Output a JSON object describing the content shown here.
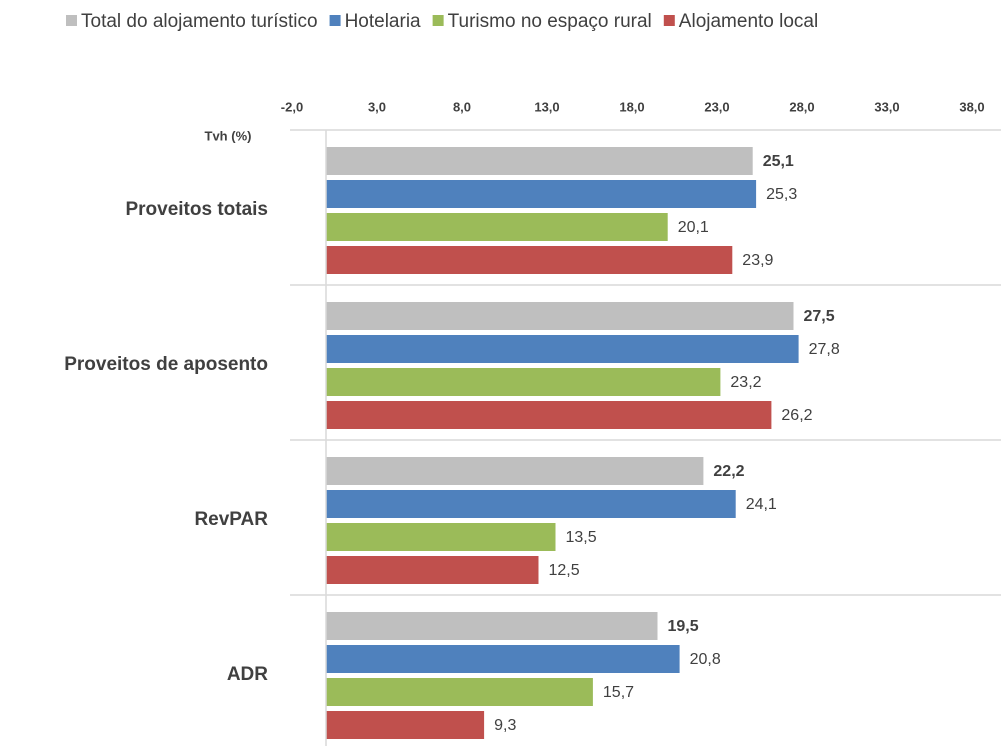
{
  "chart_data": {
    "type": "bar",
    "orientation": "horizontal",
    "x_axis_label": "Tvh (%)",
    "categories": [
      "Proveitos totais",
      "Proveitos de aposento",
      "RevPAR",
      "ADR"
    ],
    "series": [
      {
        "name": "Total do alojamento turístico",
        "color": "#bfbfbf",
        "values": [
          25.1,
          27.5,
          22.2,
          19.5
        ],
        "value_labels": [
          "25,1",
          "27,5",
          "22,2",
          "19,5"
        ]
      },
      {
        "name": "Hotelaria",
        "color": "#4f81bd",
        "values": [
          25.3,
          27.8,
          24.1,
          20.8
        ],
        "value_labels": [
          "25,3",
          "27,8",
          "24,1",
          "20,8"
        ]
      },
      {
        "name": "Turismo no espaço rural",
        "color": "#9bbb59",
        "values": [
          20.1,
          23.2,
          13.5,
          15.7
        ],
        "value_labels": [
          "20,1",
          "23,2",
          "13,5",
          "15,7"
        ]
      },
      {
        "name": "Alojamento local",
        "color": "#c0504d",
        "values": [
          23.9,
          26.2,
          12.5,
          9.3
        ],
        "value_labels": [
          "23,9",
          "26,2",
          "12,5",
          "9,3"
        ]
      }
    ],
    "xlim": [
      -2,
      38
    ],
    "xticks": [
      {
        "value": -2,
        "label": "-2,0"
      },
      {
        "value": 3,
        "label": "3,0"
      },
      {
        "value": 8,
        "label": "8,0"
      },
      {
        "value": 13,
        "label": "13,0"
      },
      {
        "value": 18,
        "label": "18,0"
      },
      {
        "value": 23,
        "label": "23,0"
      },
      {
        "value": 28,
        "label": "28,0"
      },
      {
        "value": 33,
        "label": "33,0"
      },
      {
        "value": 38,
        "label": "38,0"
      }
    ],
    "legend": "top"
  }
}
